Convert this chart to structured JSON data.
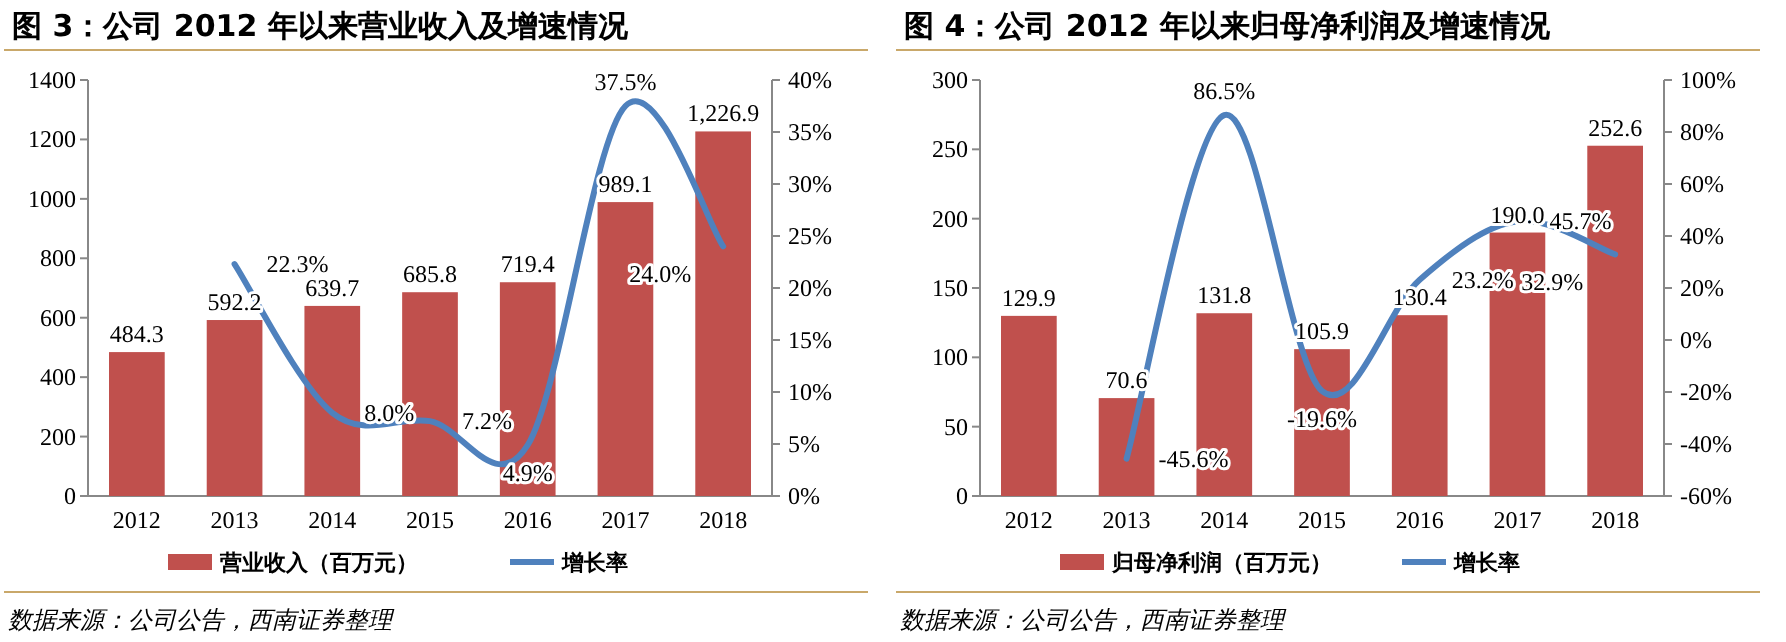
{
  "chart_data": [
    {
      "type": "bar",
      "title": "图 3：公司 2012 年以来营业收入及增速情况",
      "categories": [
        "2012",
        "2013",
        "2014",
        "2015",
        "2016",
        "2017",
        "2018"
      ],
      "series": [
        {
          "name": "营业收入（百万元）",
          "color": "#c0504d",
          "values": [
            484.3,
            592.2,
            639.7,
            685.8,
            719.4,
            989.1,
            1226.9
          ],
          "value_labels": [
            "484.3",
            "592.2",
            "639.7",
            "685.8",
            "719.4",
            "989.1",
            "1,226.9"
          ]
        },
        {
          "name": "增长率",
          "type": "line",
          "axis": "y2",
          "color": "#4f81bd",
          "values": [
            null,
            22.3,
            8.0,
            7.2,
            4.9,
            37.5,
            24.0
          ],
          "value_labels": [
            null,
            "22.3%",
            "8.0%",
            "7.2%",
            "4.9%",
            "37.5%",
            "24.0%"
          ]
        }
      ],
      "ylim": [
        0,
        1400
      ],
      "yticks": [
        0,
        200,
        400,
        600,
        800,
        1000,
        1200,
        1400
      ],
      "y2lim": [
        0,
        40
      ],
      "y2ticks": [
        {
          "value": 0,
          "label": "0%"
        },
        {
          "value": 5,
          "label": "5%"
        },
        {
          "value": 10,
          "label": "10%"
        },
        {
          "value": 15,
          "label": "15%"
        },
        {
          "value": 20,
          "label": "20%"
        },
        {
          "value": 25,
          "label": "25%"
        },
        {
          "value": 30,
          "label": "30%"
        },
        {
          "value": 35,
          "label": "35%"
        },
        {
          "value": 40,
          "label": "40%"
        }
      ],
      "legend": "bottom",
      "marker": "none",
      "line_style": "solid",
      "annotations": [
        "数据来源：公司公告，西南证券整理"
      ]
    },
    {
      "type": "bar",
      "title": "图 4：公司 2012 年以来归母净利润及增速情况",
      "categories": [
        "2012",
        "2013",
        "2014",
        "2015",
        "2016",
        "2017",
        "2018"
      ],
      "series": [
        {
          "name": "归母净利润（百万元）",
          "color": "#c0504d",
          "values": [
            129.9,
            70.6,
            131.8,
            105.9,
            130.4,
            190.0,
            252.6
          ],
          "value_labels": [
            "129.9",
            "70.6",
            "131.8",
            "105.9",
            "130.4",
            "190.0",
            "252.6"
          ]
        },
        {
          "name": "增长率",
          "type": "line",
          "axis": "y2",
          "color": "#4f81bd",
          "values": [
            null,
            -45.6,
            86.5,
            -19.6,
            23.2,
            45.7,
            32.9
          ],
          "value_labels": [
            null,
            "-45.6%",
            "86.5%",
            "-19.6%",
            "23.2%",
            "45.7%",
            "32.9%"
          ]
        }
      ],
      "ylim": [
        0,
        300
      ],
      "yticks": [
        0,
        50,
        100,
        150,
        200,
        250,
        300
      ],
      "y2lim": [
        -60,
        100
      ],
      "y2ticks": [
        {
          "value": -60,
          "label": "-60%"
        },
        {
          "value": -40,
          "label": "-40%"
        },
        {
          "value": -20,
          "label": "-20%"
        },
        {
          "value": 0,
          "label": "0%"
        },
        {
          "value": 20,
          "label": "20%"
        },
        {
          "value": 40,
          "label": "40%"
        },
        {
          "value": 60,
          "label": "60%"
        },
        {
          "value": 80,
          "label": "80%"
        },
        {
          "value": 100,
          "label": "100%"
        }
      ],
      "legend": "bottom",
      "marker": "none",
      "line_style": "solid",
      "annotations": [
        "数据来源：公司公告，西南证券整理"
      ]
    }
  ]
}
